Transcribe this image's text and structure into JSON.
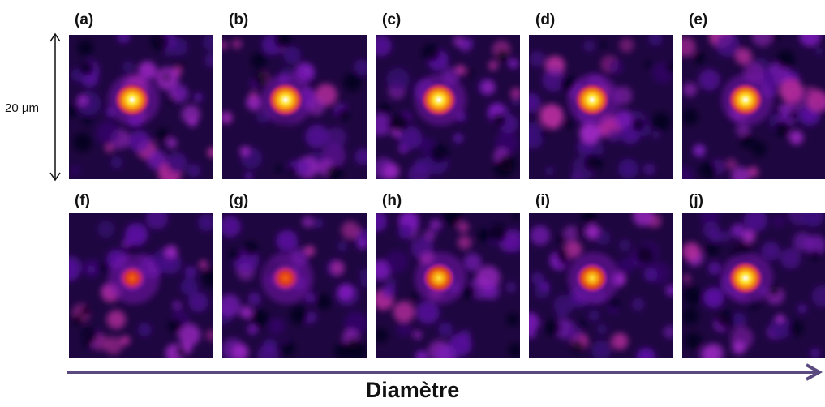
{
  "panels": [
    {
      "label": "(a)",
      "spot_intensity": 1.0
    },
    {
      "label": "(b)",
      "spot_intensity": 1.0
    },
    {
      "label": "(c)",
      "spot_intensity": 1.0
    },
    {
      "label": "(d)",
      "spot_intensity": 0.95
    },
    {
      "label": "(e)",
      "spot_intensity": 0.95
    },
    {
      "label": "(f)",
      "spot_intensity": 0.5
    },
    {
      "label": "(g)",
      "spot_intensity": 0.62
    },
    {
      "label": "(h)",
      "spot_intensity": 0.75
    },
    {
      "label": "(i)",
      "spot_intensity": 0.72
    },
    {
      "label": "(j)",
      "spot_intensity": 0.95
    }
  ],
  "scale_bar": {
    "label": "20 µm"
  },
  "axis": {
    "label": "Diamètre"
  },
  "colors": {
    "arrow": "#5a4a80",
    "colormap": [
      "#0a0220",
      "#3a0a6e",
      "#7a1ab0",
      "#c02a8a",
      "#e8501e",
      "#f8a010",
      "#ffe030",
      "#ffffff"
    ]
  }
}
